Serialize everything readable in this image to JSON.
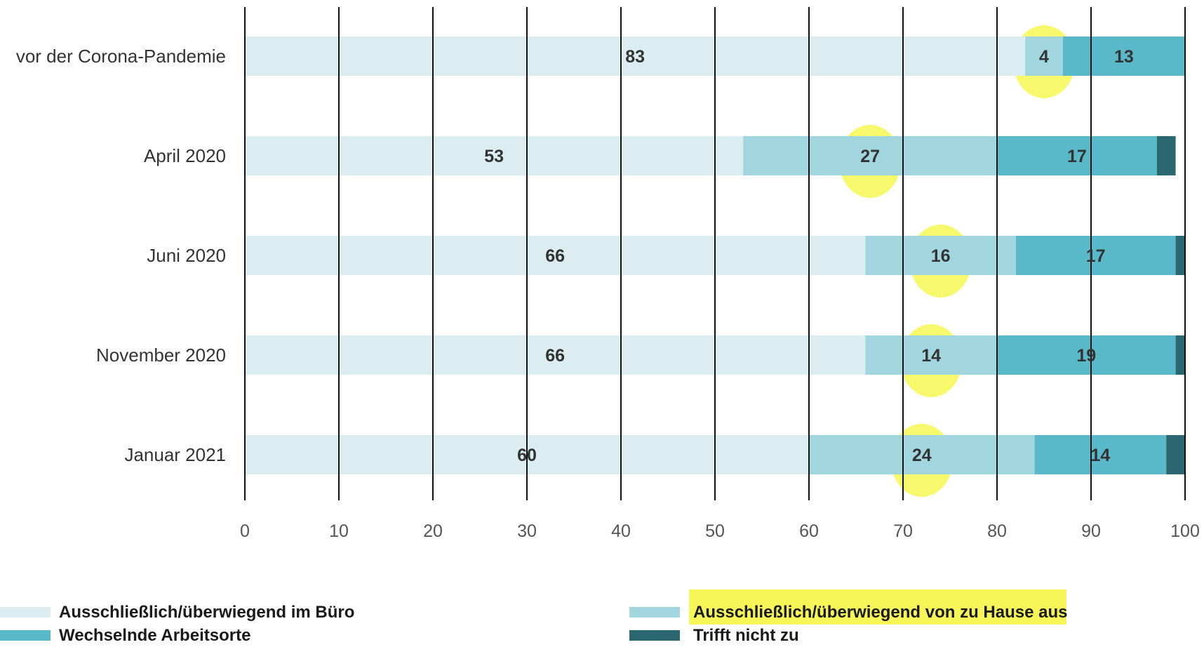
{
  "chart_data": {
    "type": "bar",
    "orientation": "horizontal",
    "stacked": true,
    "categories": [
      "vor der Corona-Pandemie",
      "April 2020",
      "Juni 2020",
      "November 2020",
      "Januar 2021"
    ],
    "series": [
      {
        "name": "Ausschließlich/überwiegend im Büro",
        "color": "#dcedf2",
        "values": [
          83,
          53,
          66,
          66,
          60
        ]
      },
      {
        "name": "Ausschließlich/überwiegend von zu Hause aus",
        "color": "#a2d6df",
        "values": [
          4,
          27,
          16,
          14,
          24
        ]
      },
      {
        "name": "Wechselnde Arbeitsorte",
        "color": "#5ab9c9",
        "values": [
          13,
          17,
          17,
          19,
          14
        ]
      },
      {
        "name": "Trifft nicht zu",
        "color": "#2b6770",
        "values": [
          0,
          2,
          1,
          1,
          2
        ]
      }
    ],
    "data_labels": [
      [
        "83",
        "4",
        "13",
        ""
      ],
      [
        "53",
        "27",
        "17",
        ""
      ],
      [
        "66",
        "16",
        "17",
        ""
      ],
      [
        "66",
        "14",
        "19",
        ""
      ],
      [
        "60",
        "24",
        "14",
        ""
      ]
    ],
    "xlim": [
      0,
      100
    ],
    "xticks": [
      0,
      10,
      20,
      30,
      40,
      50,
      60,
      70,
      80,
      90,
      100
    ],
    "grid": true,
    "legend_position": "bottom",
    "highlight_color": "#f5f53c",
    "highlighted_series": "Ausschließlich/überwiegend von zu Hause aus"
  }
}
